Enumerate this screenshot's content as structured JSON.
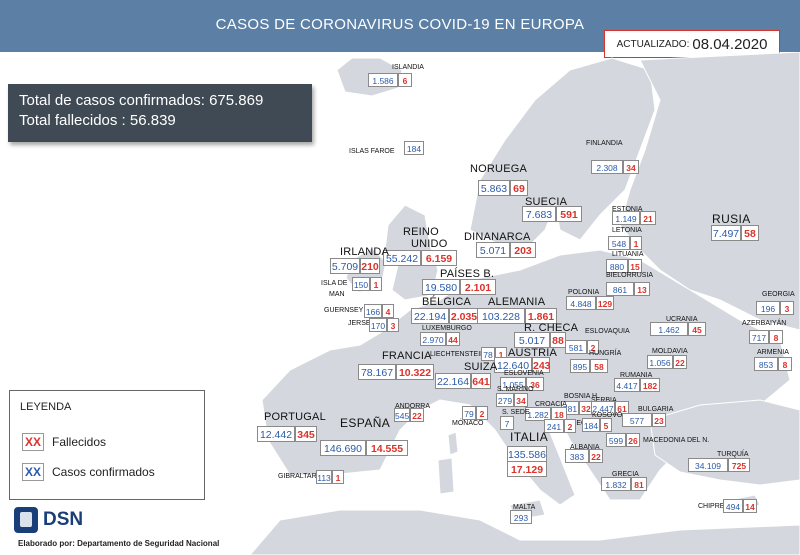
{
  "header": {
    "title": "CASOS DE CORONAVIRUS COVID-19 EN EUROPA",
    "updated_label": "ACTUALIZADO:",
    "updated_date": "08.04.2020"
  },
  "totals": {
    "confirmed_line": "Total de casos confirmados: 675.869",
    "deaths_line": "Total fallecidos : 56.839"
  },
  "legend": {
    "title": "LEYENDA",
    "deaths_swatch": "XX",
    "deaths_label": "Fallecidos",
    "cases_swatch": "XX",
    "cases_label": "Casos confirmados"
  },
  "colors": {
    "header": "#5b7fa5",
    "confirmed": "#2a5aa8",
    "deaths": "#d9332b",
    "land": "#d4d8de",
    "sea": "#ffffff"
  },
  "logo": {
    "icon": "dsn-seal-icon",
    "text": "DSN"
  },
  "credit": "Elaborado por: Departamento de Seguridad Nacional",
  "countries": [
    {
      "id": "islandia",
      "name": "ISLANDIA",
      "cases": "1.586",
      "deaths": "6"
    },
    {
      "id": "islas-faroe",
      "name": "ISLAS FAROE",
      "cases": "184",
      "deaths": ""
    },
    {
      "id": "finlandia",
      "name": "FINLANDIA",
      "cases": "2.308",
      "deaths": "34"
    },
    {
      "id": "noruega",
      "name": "NORUEGA",
      "cases": "5.863",
      "deaths": "69"
    },
    {
      "id": "suecia",
      "name": "SUECIA",
      "cases": "7.683",
      "deaths": "591"
    },
    {
      "id": "russia",
      "name": "RUSIA",
      "cases": "7.497",
      "deaths": "58"
    },
    {
      "id": "estonia",
      "name": "ESTONIA",
      "cases": "1.149",
      "deaths": "21"
    },
    {
      "id": "letonia",
      "name": "LETONIA",
      "cases": "548",
      "deaths": "1"
    },
    {
      "id": "lituania",
      "name": "LITUANIA",
      "cases": "880",
      "deaths": "15"
    },
    {
      "id": "dinamarca",
      "name": "DINANARCA",
      "cases": "5.071",
      "deaths": "203"
    },
    {
      "id": "reino-unido",
      "name": "REINO UNIDO",
      "cases": "55.242",
      "deaths": "6.159"
    },
    {
      "id": "irlanda",
      "name": "IRLANDA",
      "cases": "5.709",
      "deaths": "210"
    },
    {
      "id": "bielorrusia",
      "name": "BIELORRUSIA",
      "cases": "861",
      "deaths": "13"
    },
    {
      "id": "isla-de-man",
      "name": "ISLA DE MAN",
      "cases": "150",
      "deaths": "1"
    },
    {
      "id": "paises-bajos",
      "name": "PAÍSES B.",
      "cases": "19.580",
      "deaths": "2.101"
    },
    {
      "id": "polonia",
      "name": "POLONIA",
      "cases": "4.848",
      "deaths": "129"
    },
    {
      "id": "georgia",
      "name": "GEORGIA",
      "cases": "196",
      "deaths": "3"
    },
    {
      "id": "guernsey",
      "name": "GUERNSEY",
      "cases": "166",
      "deaths": "4"
    },
    {
      "id": "jersey",
      "name": "JERSEY",
      "cases": "170",
      "deaths": "3"
    },
    {
      "id": "belgica",
      "name": "BÉLGICA",
      "cases": "22.194",
      "deaths": "2.035"
    },
    {
      "id": "alemania",
      "name": "ALEMANIA",
      "cases": "103.228",
      "deaths": "1.861"
    },
    {
      "id": "azerbaiyan",
      "name": "AZERBAIYÁN",
      "cases": "717",
      "deaths": "8"
    },
    {
      "id": "luxemburgo",
      "name": "LUXEMBURGO",
      "cases": "2.970",
      "deaths": "44"
    },
    {
      "id": "ucrania",
      "name": "UCRANIA",
      "cases": "1.462",
      "deaths": "45"
    },
    {
      "id": "r-checa",
      "name": "R. CHECA",
      "cases": "5.017",
      "deaths": "88"
    },
    {
      "id": "eslovaquia",
      "name": "ESLOVAQUIA",
      "cases": "581",
      "deaths": "2"
    },
    {
      "id": "armenia",
      "name": "ARMENIA",
      "cases": "853",
      "deaths": "8"
    },
    {
      "id": "liechtenstein",
      "name": "LIECHTENSTEIN",
      "cases": "78",
      "deaths": "1"
    },
    {
      "id": "moldavia",
      "name": "MOLDAVIA",
      "cases": "1.056",
      "deaths": "22"
    },
    {
      "id": "austria",
      "name": "AUSTRIA",
      "cases": "12.640",
      "deaths": "243"
    },
    {
      "id": "hungria",
      "name": "HUNGRÍA",
      "cases": "895",
      "deaths": "58"
    },
    {
      "id": "francia",
      "name": "FRANCIA",
      "cases": "78.167",
      "deaths": "10.322"
    },
    {
      "id": "suiza",
      "name": "SUIZA",
      "cases": "22.164",
      "deaths": "641"
    },
    {
      "id": "eslovenia",
      "name": "ESLOVENIA",
      "cases": "1.055",
      "deaths": "36"
    },
    {
      "id": "rumania",
      "name": "RUMANIA",
      "cases": "4.417",
      "deaths": "182"
    },
    {
      "id": "andorra",
      "name": "ANDORRA",
      "cases": "545",
      "deaths": "22"
    },
    {
      "id": "san-marino",
      "name": "S. MARINO",
      "cases": "279",
      "deaths": "34"
    },
    {
      "id": "bosnia",
      "name": "BOSNIA H.",
      "cases": "781",
      "deaths": "32"
    },
    {
      "id": "serbia",
      "name": "SERBIA",
      "cases": "2.447",
      "deaths": "61"
    },
    {
      "id": "croacia",
      "name": "CROACIA",
      "cases": "1.282",
      "deaths": "18"
    },
    {
      "id": "portugal",
      "name": "PORTUGAL",
      "cases": "12.442",
      "deaths": "345"
    },
    {
      "id": "espana",
      "name": "ESPAÑA",
      "cases": "146.690",
      "deaths": "14.555"
    },
    {
      "id": "monaco",
      "name": "MÓNACO",
      "cases": "79",
      "deaths": "2"
    },
    {
      "id": "s-sede",
      "name": "S. SEDE",
      "cases": "7",
      "deaths": ""
    },
    {
      "id": "montenegro",
      "name": "MONTENEGRO",
      "cases": "241",
      "deaths": "2"
    },
    {
      "id": "kosovo",
      "name": "KOSOVO",
      "cases": "184",
      "deaths": "5"
    },
    {
      "id": "bulgaria",
      "name": "BULGARIA",
      "cases": "577",
      "deaths": "23"
    },
    {
      "id": "italia",
      "name": "ITALIA",
      "cases": "135.586",
      "deaths": "17.129"
    },
    {
      "id": "albania",
      "name": "ALBANIA",
      "cases": "383",
      "deaths": "22"
    },
    {
      "id": "macedonia",
      "name": "MACEDONIA DEL N.",
      "cases": "599",
      "deaths": "26"
    },
    {
      "id": "turquia",
      "name": "TURQUÍA",
      "cases": "34.109",
      "deaths": "725"
    },
    {
      "id": "gibraltar",
      "name": "GIBRALTAR",
      "cases": "113",
      "deaths": "1"
    },
    {
      "id": "grecia",
      "name": "GRECIA",
      "cases": "1.832",
      "deaths": "81"
    },
    {
      "id": "chipre",
      "name": "CHIPRE",
      "cases": "494",
      "deaths": "14"
    },
    {
      "id": "malta",
      "name": "MALTA",
      "cases": "293",
      "deaths": ""
    }
  ]
}
